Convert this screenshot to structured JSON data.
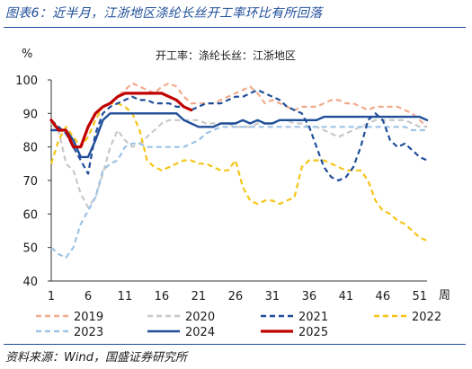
{
  "header": {
    "title": "图表6：近半月，江浙地区涤纶长丝开工率环比有所回落"
  },
  "footer": {
    "source": "资料来源：Wind，国盛证券研究所"
  },
  "colors": {
    "2019": "#f2aa8c",
    "2020": "#c8c8c8",
    "2021": "#1f4e9a",
    "2022": "#f5c518",
    "2023": "#9dc3e6",
    "2024": "#1f4e9a",
    "2025": "#c00000",
    "title": "#1f4e9a"
  },
  "chart_data": {
    "type": "line",
    "title": "开工率：涤纶长丝：江浙地区",
    "ylabel": "%",
    "xlabel": "周",
    "xlim": [
      1,
      52
    ],
    "ylim": [
      40,
      100
    ],
    "xticks": [
      1,
      6,
      11,
      16,
      21,
      26,
      31,
      36,
      41,
      46,
      51
    ],
    "yticks": [
      40,
      50,
      60,
      70,
      80,
      90,
      100
    ],
    "grid": false,
    "legend_position": "bottom",
    "series": [
      {
        "name": "2019",
        "style": "dashed",
        "x": [
          1,
          2,
          3,
          4,
          5,
          6,
          7,
          8,
          9,
          10,
          11,
          12,
          13,
          14,
          15,
          16,
          17,
          18,
          19,
          20,
          21,
          22,
          23,
          24,
          25,
          26,
          27,
          28,
          29,
          30,
          31,
          32,
          33,
          34,
          35,
          36,
          37,
          38,
          39,
          40,
          41,
          42,
          43,
          44,
          45,
          46,
          47,
          48,
          49,
          50,
          51,
          52
        ],
        "y": [
          87,
          86,
          84,
          80,
          80,
          86,
          90,
          92,
          93,
          95,
          97,
          99,
          98,
          97,
          96,
          98,
          99,
          98,
          95,
          93,
          93,
          93,
          93,
          94,
          95,
          96,
          97,
          98,
          96,
          93,
          94,
          93,
          92,
          91,
          92,
          92,
          92,
          93,
          94,
          94,
          93,
          93,
          92,
          91,
          92,
          92,
          92,
          92,
          91,
          90,
          88,
          86
        ]
      },
      {
        "name": "2020",
        "style": "dashed",
        "x": [
          1,
          2,
          3,
          4,
          5,
          6,
          7,
          8,
          9,
          10,
          11,
          12,
          13,
          14,
          15,
          16,
          17,
          18,
          19,
          20,
          21,
          22,
          23,
          24,
          25,
          26,
          27,
          28,
          29,
          30,
          31,
          32,
          33,
          34,
          35,
          36,
          37,
          38,
          39,
          40,
          41,
          42,
          43,
          44,
          45,
          46,
          47,
          48,
          49,
          50,
          51,
          52
        ],
        "y": [
          87,
          85,
          75,
          73,
          66,
          62,
          65,
          72,
          80,
          85,
          82,
          80,
          81,
          83,
          85,
          87,
          88,
          88,
          88,
          88,
          88,
          87,
          87,
          87,
          87,
          86,
          86,
          86,
          87,
          87,
          87,
          88,
          88,
          87,
          87,
          86,
          86,
          85,
          84,
          83,
          84,
          85,
          86,
          87,
          88,
          88,
          88,
          88,
          88,
          87,
          86,
          86
        ]
      },
      {
        "name": "2021",
        "style": "dashed",
        "x": [
          1,
          2,
          3,
          4,
          5,
          6,
          7,
          8,
          9,
          10,
          11,
          12,
          13,
          14,
          15,
          16,
          17,
          18,
          19,
          20,
          21,
          22,
          23,
          24,
          25,
          26,
          27,
          28,
          29,
          30,
          31,
          32,
          33,
          34,
          35,
          36,
          37,
          38,
          39,
          40,
          41,
          42,
          43,
          44,
          45,
          46,
          47,
          48,
          49,
          50,
          51,
          52
        ],
        "y": [
          88,
          86,
          84,
          80,
          76,
          72,
          84,
          90,
          92,
          93,
          94,
          95,
          94,
          94,
          93,
          93,
          93,
          92,
          92,
          91,
          92,
          93,
          93,
          93,
          94,
          95,
          95,
          96,
          97,
          96,
          95,
          94,
          92,
          91,
          90,
          86,
          80,
          74,
          71,
          70,
          71,
          74,
          80,
          88,
          90,
          88,
          82,
          80,
          81,
          79,
          77,
          76
        ]
      },
      {
        "name": "2022",
        "style": "dashed",
        "x": [
          1,
          2,
          3,
          4,
          5,
          6,
          7,
          8,
          9,
          10,
          11,
          12,
          13,
          14,
          15,
          16,
          17,
          18,
          19,
          20,
          21,
          22,
          23,
          24,
          25,
          26,
          27,
          28,
          29,
          30,
          31,
          32,
          33,
          34,
          35,
          36,
          37,
          38,
          39,
          40,
          41,
          42,
          43,
          44,
          45,
          46,
          47,
          48,
          49,
          50,
          51,
          52
        ],
        "y": [
          75,
          82,
          86,
          83,
          80,
          83,
          88,
          92,
          93,
          93,
          92,
          90,
          85,
          76,
          74,
          73,
          74,
          75,
          76,
          76,
          75,
          75,
          74,
          73,
          73,
          76,
          68,
          64,
          63,
          64,
          64,
          63,
          64,
          65,
          74,
          76,
          76,
          76,
          75,
          74,
          73,
          73,
          73,
          70,
          64,
          61,
          60,
          58,
          57,
          55,
          53,
          52
        ]
      },
      {
        "name": "2023",
        "style": "dashed",
        "x": [
          1,
          2,
          3,
          4,
          5,
          6,
          7,
          8,
          9,
          10,
          11,
          12,
          13,
          14,
          15,
          16,
          17,
          18,
          19,
          20,
          21,
          22,
          23,
          24,
          25,
          26,
          27,
          28,
          29,
          30,
          31,
          32,
          33,
          34,
          35,
          36,
          37,
          38,
          39,
          40,
          41,
          42,
          43,
          44,
          45,
          46,
          47,
          48,
          49,
          50,
          51,
          52
        ],
        "y": [
          50,
          48,
          47,
          50,
          57,
          61,
          65,
          73,
          75,
          76,
          80,
          81,
          81,
          80,
          80,
          80,
          80,
          80,
          80,
          81,
          82,
          84,
          85,
          86,
          86,
          86,
          86,
          86,
          86,
          86,
          86,
          86,
          86,
          86,
          86,
          86,
          86,
          86,
          86,
          86,
          86,
          86,
          86,
          86,
          86,
          86,
          86,
          86,
          86,
          85,
          85,
          85
        ]
      },
      {
        "name": "2024",
        "style": "solid",
        "x": [
          1,
          2,
          3,
          4,
          5,
          6,
          7,
          8,
          9,
          10,
          11,
          12,
          13,
          14,
          15,
          16,
          17,
          18,
          19,
          20,
          21,
          22,
          23,
          24,
          25,
          26,
          27,
          28,
          29,
          30,
          31,
          32,
          33,
          34,
          35,
          36,
          37,
          38,
          39,
          40,
          41,
          42,
          43,
          44,
          45,
          46,
          47,
          48,
          49,
          50,
          51,
          52
        ],
        "y": [
          85,
          85,
          85,
          82,
          77,
          77,
          82,
          88,
          90,
          90,
          90,
          90,
          90,
          90,
          90,
          90,
          90,
          90,
          88,
          87,
          86,
          86,
          86,
          87,
          87,
          87,
          88,
          87,
          88,
          87,
          87,
          88,
          88,
          88,
          88,
          88,
          88,
          89,
          89,
          89,
          89,
          89,
          89,
          89,
          89,
          89,
          89,
          89,
          89,
          89,
          89,
          88
        ]
      },
      {
        "name": "2025",
        "style": "solid",
        "x": [
          1,
          2,
          3,
          4,
          5,
          6,
          7,
          8,
          9,
          10,
          11,
          12,
          13,
          14,
          15,
          16,
          17,
          18,
          19,
          20
        ],
        "y": [
          88,
          85,
          85,
          80,
          80,
          86,
          90,
          92,
          93,
          95,
          96,
          96,
          96,
          96,
          96,
          96,
          95,
          94,
          92,
          91
        ]
      }
    ],
    "x_tick_labels": [
      "1",
      "6",
      "11",
      "16",
      "21",
      "26",
      "31",
      "36",
      "41",
      "46",
      "51"
    ],
    "y_tick_labels": [
      "40",
      "50",
      "60",
      "70",
      "80",
      "90",
      "100"
    ]
  }
}
